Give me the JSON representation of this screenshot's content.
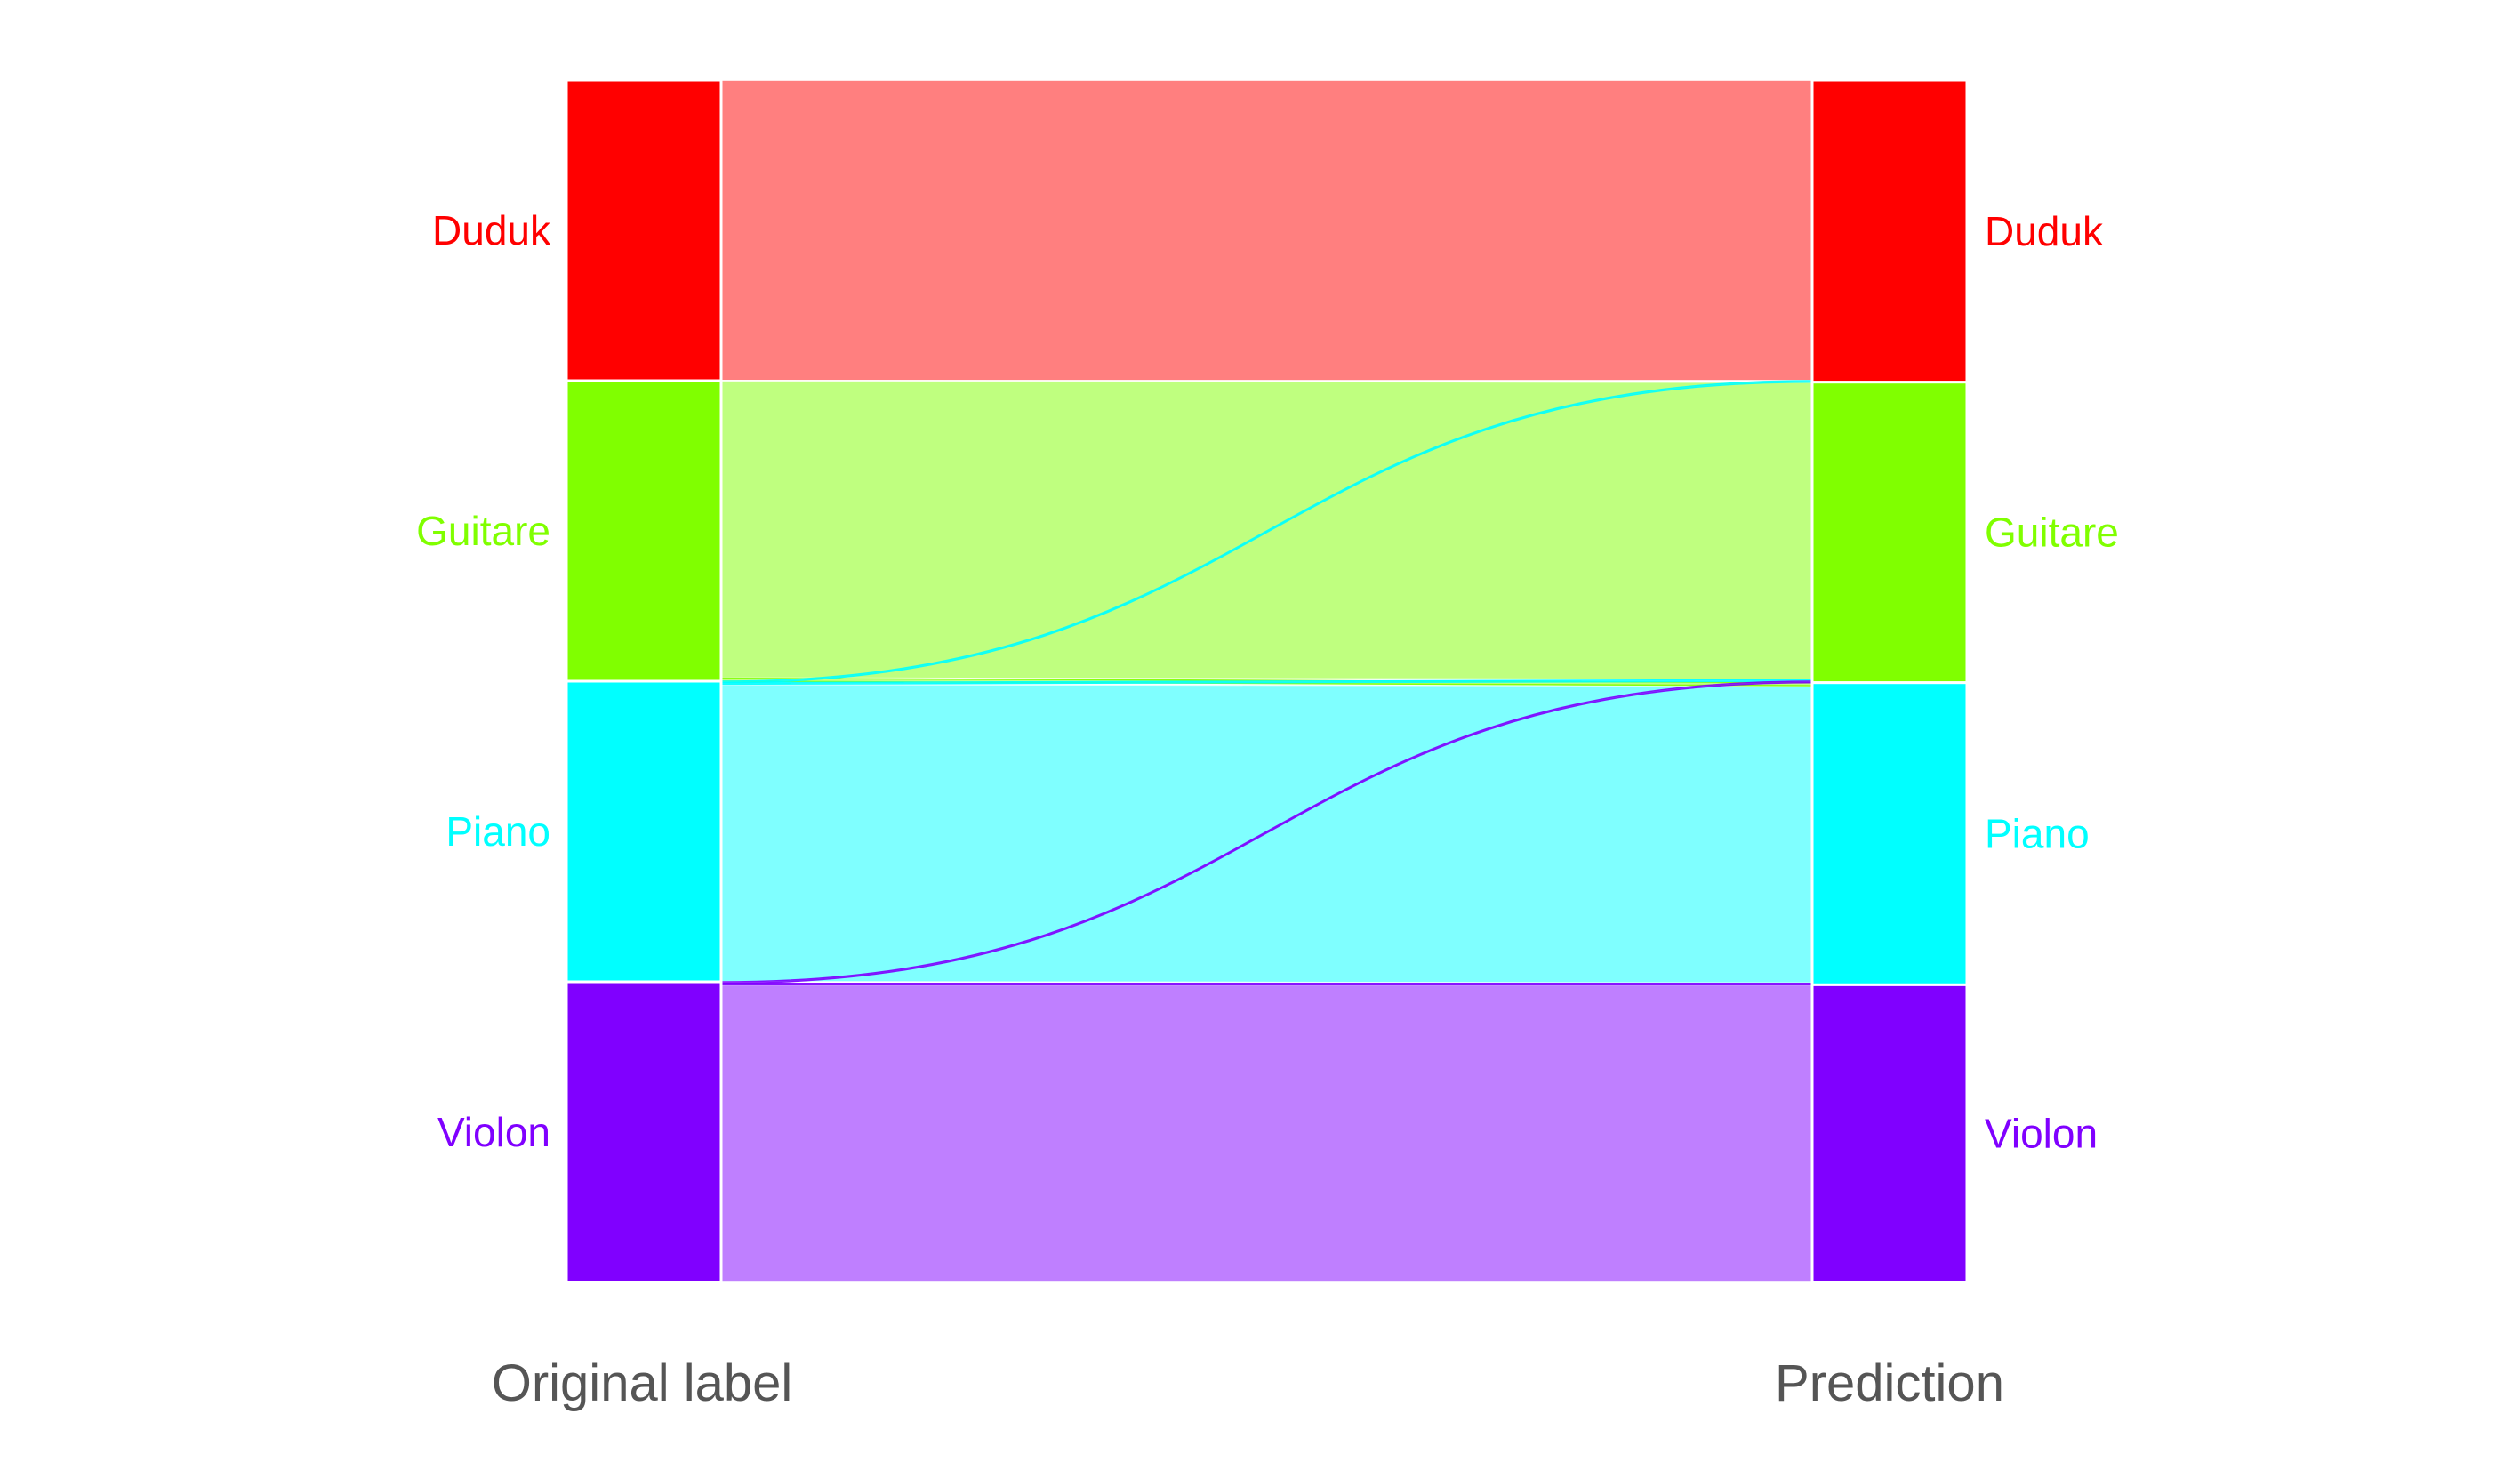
{
  "chart_data": {
    "type": "alluvial",
    "axes": [
      "Original label",
      "Prediction"
    ],
    "categories": [
      "Duduk",
      "Guitare",
      "Piano",
      "Violon"
    ],
    "colors": {
      "Duduk": "#ff0000",
      "Guitare": "#80ff00",
      "Piano": "#00ffff",
      "Violon": "#8000ff"
    },
    "flows": [
      {
        "from": "Duduk",
        "to": "Duduk",
        "value": 100
      },
      {
        "from": "Guitare",
        "to": "Guitare",
        "value": 99
      },
      {
        "from": "Guitare",
        "to": "Piano",
        "value": 1
      },
      {
        "from": "Piano",
        "to": "Duduk",
        "value": 0.5
      },
      {
        "from": "Piano",
        "to": "Guitare",
        "value": 0.5
      },
      {
        "from": "Piano",
        "to": "Piano",
        "value": 99
      },
      {
        "from": "Violon",
        "to": "Guitare",
        "value": 0.5
      },
      {
        "from": "Violon",
        "to": "Piano",
        "value": 0.5
      },
      {
        "from": "Violon",
        "to": "Violon",
        "value": 99
      }
    ]
  }
}
